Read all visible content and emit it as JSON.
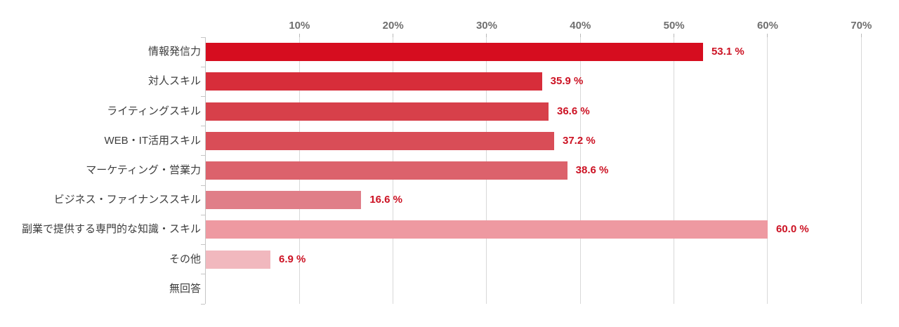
{
  "chart_data": {
    "type": "bar",
    "orientation": "horizontal",
    "title": "",
    "xlabel": "",
    "ylabel": "",
    "categories": [
      "情報発信力",
      "対人スキル",
      "ライティングスキル",
      "WEB・IT活用スキル",
      "マーケティング・営業力",
      "ビジネス・ファイナンススキル",
      "副業で提供する専門的な知識・スキル",
      "その他",
      "無回答"
    ],
    "values": [
      53.1,
      35.9,
      36.6,
      37.2,
      38.6,
      16.6,
      60.0,
      6.9,
      0
    ],
    "value_labels": [
      "53.1 %",
      "35.9 %",
      "36.6 %",
      "37.2 %",
      "38.6 %",
      "16.6 %",
      "60.0 %",
      "6.9 %",
      ""
    ],
    "bar_colors": [
      "#d60d1f",
      "#d72d3a",
      "#d7404a",
      "#d94d57",
      "#dc626c",
      "#e07e88",
      "#ee99a1",
      "#f1b8be",
      "#ffffff"
    ],
    "x_tick_labels": [
      "10%",
      "20%",
      "30%",
      "40%",
      "50%",
      "60%",
      "70%"
    ],
    "x_tick_values": [
      10,
      20,
      30,
      40,
      50,
      60,
      70
    ],
    "xlim": [
      0,
      74
    ],
    "grid": true,
    "legend": false,
    "colors": {
      "value_label": "#cc1223",
      "grid_line": "#d8d8d8",
      "axis_line": "#c5c5c5",
      "tick_label": "#6f6f6f",
      "category_label": "#3d3d3d"
    }
  }
}
